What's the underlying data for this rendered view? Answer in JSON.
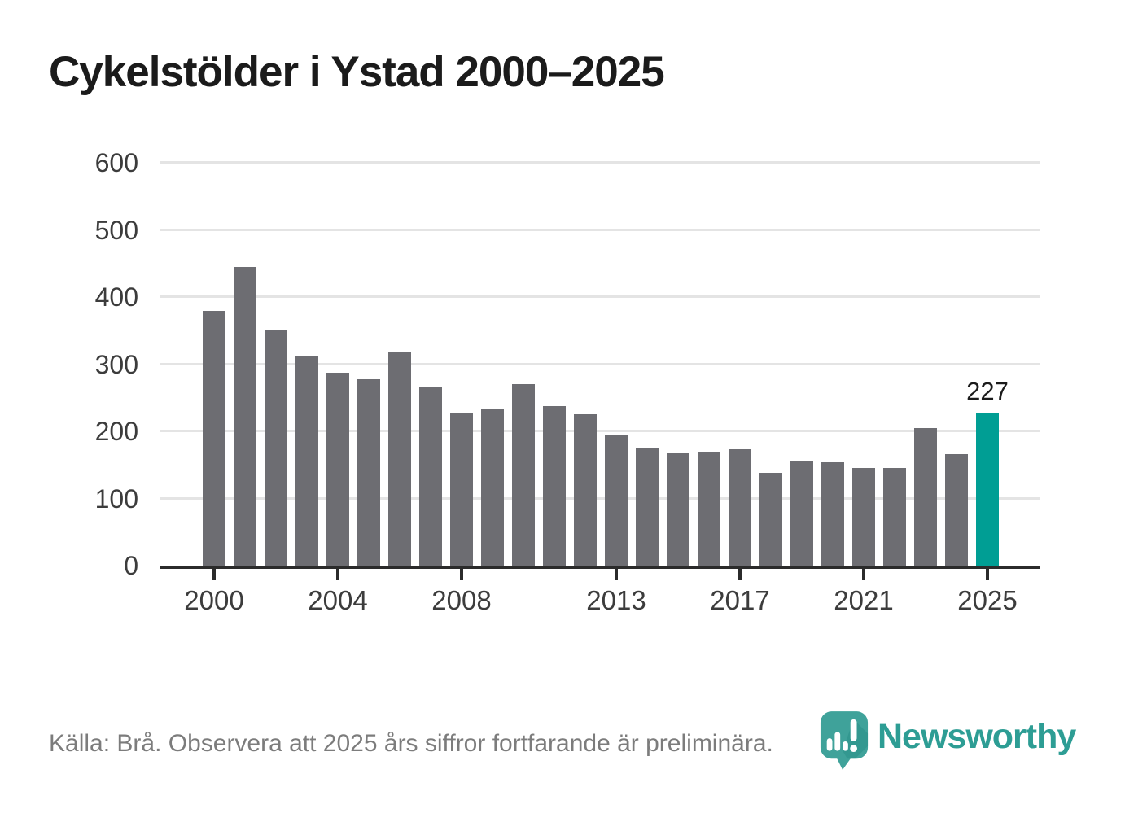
{
  "title": "Cykelstölder i Ystad 2000–2025",
  "source_note": "Källa: Brå. Observera att 2025 års siffror fortfarande är preliminära.",
  "brand": {
    "name": "Newsworthy"
  },
  "icons": {
    "brand_mark": "newsworthy-speech-pin-bar-chart-icon"
  },
  "colors": {
    "bar": "#6D6D72",
    "highlight": "#009E94",
    "grid": "#E4E4E4",
    "axis": "#2B2B2B",
    "title_text": "#1B1B1B",
    "tick_text": "#3C3C3C",
    "note_text": "#7C7C7C",
    "value_label_text": "#1B1B1B",
    "brand_mark": "#3FA29A",
    "brand_text": "#2D9D94"
  },
  "chart_data": {
    "type": "bar",
    "title": "Cykelstölder i Ystad 2000–2025",
    "x": [
      2000,
      2001,
      2002,
      2003,
      2004,
      2005,
      2006,
      2007,
      2008,
      2009,
      2010,
      2011,
      2012,
      2013,
      2014,
      2015,
      2016,
      2017,
      2018,
      2019,
      2020,
      2021,
      2022,
      2023,
      2024,
      2025
    ],
    "values": [
      380,
      445,
      350,
      312,
      287,
      278,
      317,
      266,
      227,
      234,
      270,
      238,
      226,
      194,
      176,
      167,
      168,
      173,
      138,
      155,
      154,
      146,
      146,
      205,
      166,
      227
    ],
    "highlight_index": 25,
    "highlight_label": "227",
    "bar_color": "#6D6D72",
    "highlight_color": "#009E94",
    "ylim": [
      0,
      600
    ],
    "yticks": [
      0,
      100,
      200,
      300,
      400,
      500,
      600
    ],
    "xticks": [
      2000,
      2004,
      2008,
      2013,
      2017,
      2021,
      2025
    ],
    "grid": "horizontal",
    "legend": "none",
    "xlabel": "",
    "ylabel": ""
  }
}
